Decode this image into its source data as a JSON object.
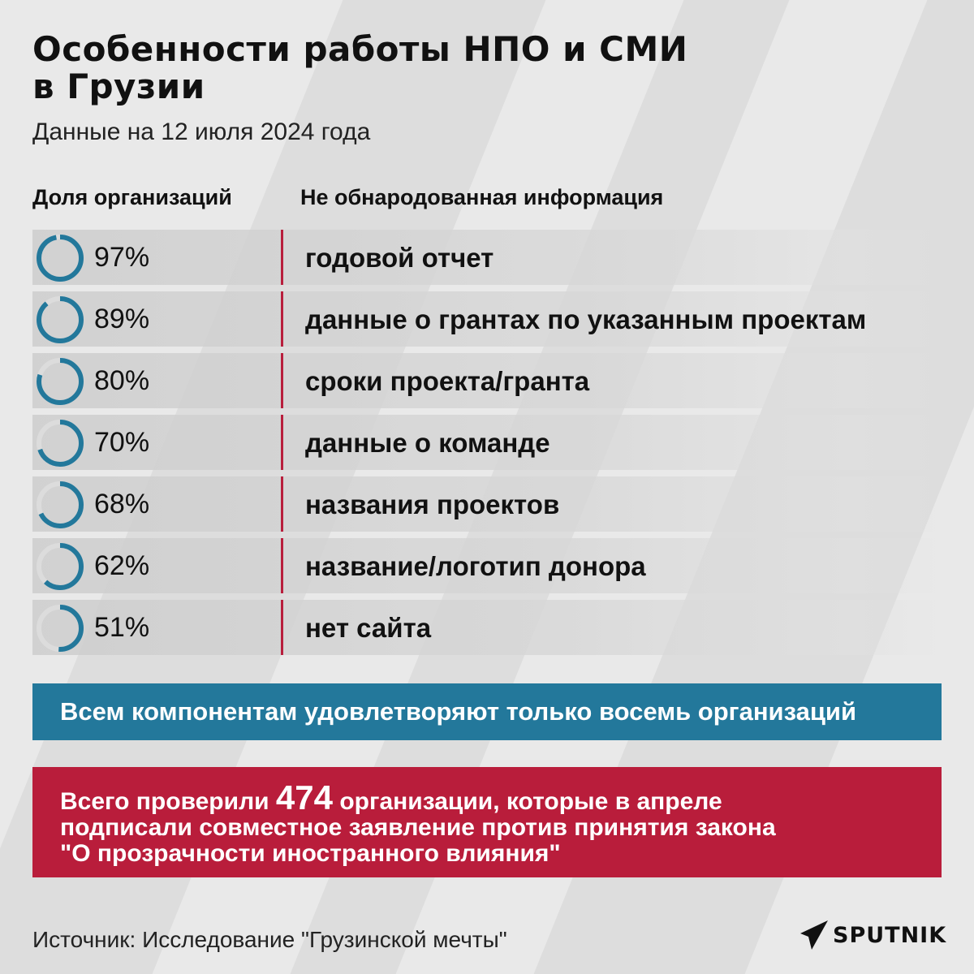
{
  "header": {
    "title_line1": "Особенности работы НПО и СМИ",
    "title_line2": "в Грузии",
    "subtitle": "Данные на 12 июля 2024 года"
  },
  "columns": {
    "share": "Доля организаций",
    "info": "Не обнародованная информация"
  },
  "rows": [
    {
      "pct": "97%",
      "value": 97,
      "label": "годовой отчет"
    },
    {
      "pct": "89%",
      "value": 89,
      "label": "данные о грантах по указанным проектам"
    },
    {
      "pct": "80%",
      "value": 80,
      "label": "сроки проекта/гранта"
    },
    {
      "pct": "70%",
      "value": 70,
      "label": "данные о команде"
    },
    {
      "pct": "68%",
      "value": 68,
      "label": "названия проектов"
    },
    {
      "pct": "62%",
      "value": 62,
      "label": "название/логотип донора"
    },
    {
      "pct": "51%",
      "value": 51,
      "label": "нет сайта"
    }
  ],
  "banner_blue": {
    "text": "Всем компонентам удовлетворяют только восемь организаций"
  },
  "banner_red": {
    "prefix": "Всего проверили ",
    "number": "474",
    "suffix": " организации, которые в апреле",
    "line2": "подписали совместное заявление против принятия закона",
    "line3": "\"О прозрачности иностранного влияния\""
  },
  "footer": {
    "source": "Источник: Исследование \"Грузинской мечты\"",
    "logo": "SPUTNIK"
  },
  "colors": {
    "background": "#e9e9e9",
    "ring": "#23789b",
    "ring_track": "#dcdcdc",
    "divider": "#b81e3c",
    "banner_blue": "#23789b",
    "banner_red": "#b91d3b"
  },
  "chart_data": {
    "type": "table",
    "title": "Особенности работы НПО и СМИ в Грузии",
    "subtitle": "Данные на 12 июля 2024 года",
    "columns": [
      "Доля организаций",
      "Не обнародованная информация"
    ],
    "categories": [
      "годовой отчет",
      "данные о грантах по указанным проектам",
      "сроки проекта/гранта",
      "данные о команде",
      "названия проектов",
      "название/логотип донора",
      "нет сайта"
    ],
    "values": [
      97,
      89,
      80,
      70,
      68,
      62,
      51
    ],
    "unit": "%",
    "visual": "donut ring per row showing share",
    "annotations": [
      "Всем компонентам удовлетворяют только восемь организаций",
      "Всего проверили 474 организации, которые в апреле подписали совместное заявление против принятия закона \"О прозрачности иностранного влияния\""
    ],
    "source": "Источник: Исследование \"Грузинской мечты\""
  }
}
